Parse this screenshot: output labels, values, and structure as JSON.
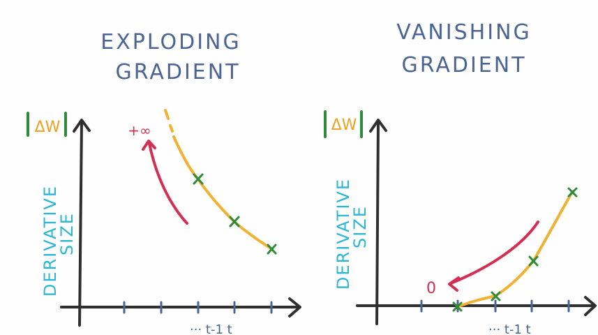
{
  "colors": {
    "title": "#4a6496",
    "axis": "#2f2f2f",
    "ylabel": "#2bb7d4",
    "bracket": "#2e8b3a",
    "delta_w": "#f0a020",
    "curve": "#f2b132",
    "marker": "#2e8b3a",
    "arrow": "#d42f52",
    "tick": "#4a6496"
  },
  "left_panel": {
    "title_line1": "EXPLODING",
    "title_line2": "GRADIENT",
    "y_symbol": "ΔW",
    "ylabel_line1": "DERIVATIVE",
    "ylabel_line2": "SIZE",
    "arrow_label": "+∞",
    "x_labels": "··· t-1  t"
  },
  "right_panel": {
    "title_line1": "VANISHING",
    "title_line2": "GRADIENT",
    "y_symbol": "ΔW",
    "ylabel_line1": "DERIVATIVE",
    "ylabel_line2": "SIZE",
    "arrow_label": "0",
    "x_labels": "··· t-1  t"
  }
}
